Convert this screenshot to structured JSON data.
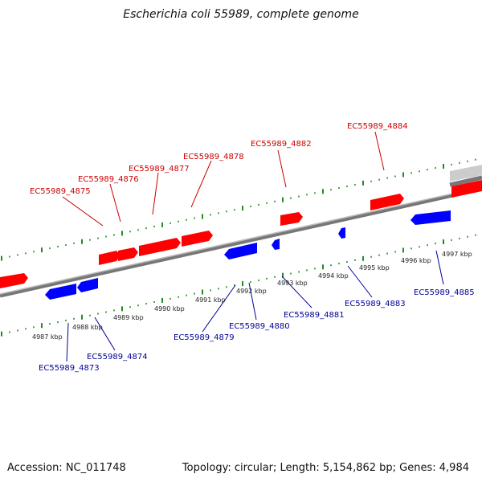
{
  "title": "Escherichia coli 55989, complete genome",
  "footer": {
    "accession": "Accession: NC_011748",
    "summary": "Topology: circular; Length: 5,154,862 bp; Genes: 4,984"
  },
  "colors": {
    "forward": "#ff0000",
    "reverse": "#0000ff",
    "backbone": "#888888",
    "ticks": "#228b22",
    "forward_label": "#cc0000",
    "reverse_label": "#000099"
  },
  "scale": {
    "unit": "kbp",
    "ticks": [
      {
        "label": "4987 kbp"
      },
      {
        "label": "4988 kbp"
      },
      {
        "label": "4989 kbp"
      },
      {
        "label": "4990 kbp"
      },
      {
        "label": "4991 kbp"
      },
      {
        "label": "4992 kbp"
      },
      {
        "label": "4993 kbp"
      },
      {
        "label": "4994 kbp"
      },
      {
        "label": "4995 kbp"
      },
      {
        "label": "4996 kbp"
      },
      {
        "label": "4997 kbp"
      }
    ]
  },
  "genes": {
    "forward_labels": [
      "EC55989_4875",
      "EC55989_4876",
      "EC55989_4877",
      "EC55989_4878",
      "EC55989_4882",
      "EC55989_4884"
    ],
    "reverse_labels": [
      "EC55989_4873",
      "EC55989_4874",
      "EC55989_4879",
      "EC55989_4880",
      "EC55989_4881",
      "EC55989_4883",
      "EC55989_4885"
    ]
  }
}
